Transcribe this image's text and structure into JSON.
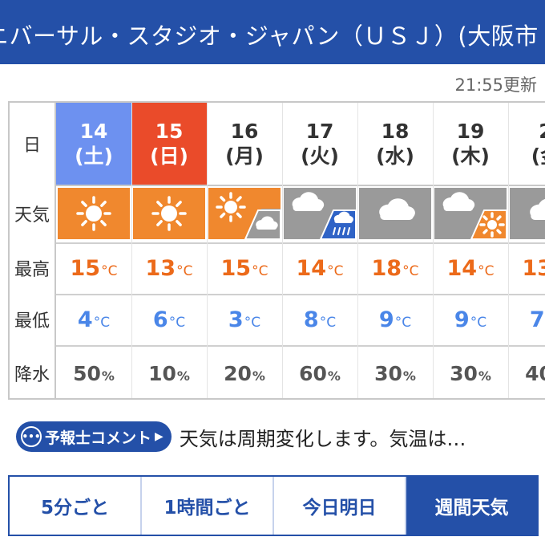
{
  "header": {
    "title": "ニバーサル・スタジオ・ジャパン（ＵＳＪ）(大阪市"
  },
  "updated": "21:55更新",
  "row_labels": {
    "day": "日",
    "weather": "天気",
    "high": "最高",
    "low": "最低",
    "precip": "降水"
  },
  "units": {
    "temp": "°C",
    "pct": "%"
  },
  "days": [
    {
      "date": "14",
      "weekday": "(土)",
      "weather": "sunny",
      "high": "15",
      "low": "4",
      "precip": "50"
    },
    {
      "date": "15",
      "weekday": "(日)",
      "weather": "sunny",
      "high": "13",
      "low": "6",
      "precip": "10"
    },
    {
      "date": "16",
      "weekday": "(月)",
      "weather": "sunny-then-cloudy",
      "high": "15",
      "low": "3",
      "precip": "20"
    },
    {
      "date": "17",
      "weekday": "(火)",
      "weather": "cloudy-then-rain",
      "high": "14",
      "low": "8",
      "precip": "60"
    },
    {
      "date": "18",
      "weekday": "(水)",
      "weather": "cloudy",
      "high": "18",
      "low": "9",
      "precip": "30"
    },
    {
      "date": "19",
      "weekday": "(木)",
      "weather": "cloudy-then-sunny",
      "high": "14",
      "low": "9",
      "precip": "30"
    },
    {
      "date": "2",
      "weekday": "(金",
      "weather": "cloudy",
      "high": "13",
      "low": "7",
      "precip": "40"
    }
  ],
  "colors": {
    "sun": "#f0882e",
    "cloud": "#9a9a9a",
    "rain": "#2f63c6",
    "brand": "#2450a8"
  },
  "comment": {
    "label": "予報士コメント",
    "text": "天気は周期変化します。気温は…"
  },
  "tabs": [
    {
      "label": "5分ごと",
      "active": false
    },
    {
      "label": "1時間ごと",
      "active": false
    },
    {
      "label": "今日明日",
      "active": false
    },
    {
      "label": "週間天気",
      "active": true
    }
  ]
}
